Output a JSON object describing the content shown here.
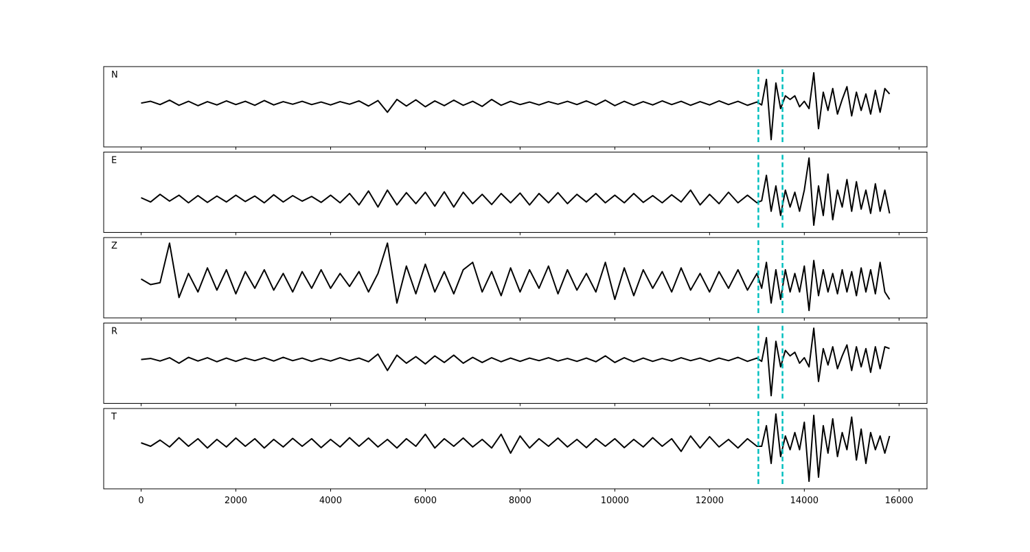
{
  "chart_data": {
    "type": "line",
    "xlim": [
      -790,
      16590
    ],
    "xticks": [
      0,
      2000,
      4000,
      6000,
      8000,
      10000,
      12000,
      14000,
      16000
    ],
    "vlines": [
      13030,
      13540
    ],
    "vline_color": "#00bfbf",
    "color": "#000000",
    "x": [
      0,
      200,
      400,
      600,
      800,
      1000,
      1200,
      1400,
      1600,
      1800,
      2000,
      2200,
      2400,
      2600,
      2800,
      3000,
      3200,
      3400,
      3600,
      3800,
      4000,
      4200,
      4400,
      4600,
      4800,
      5000,
      5200,
      5400,
      5600,
      5800,
      6000,
      6200,
      6400,
      6600,
      6800,
      7000,
      7200,
      7400,
      7600,
      7800,
      8000,
      8200,
      8400,
      8600,
      8800,
      9000,
      9200,
      9400,
      9600,
      9800,
      10000,
      10200,
      10400,
      10600,
      10800,
      11000,
      11200,
      11400,
      11600,
      11800,
      12000,
      12200,
      12400,
      12600,
      12800,
      13000,
      13100,
      13200,
      13300,
      13400,
      13500,
      13600,
      13700,
      13800,
      13900,
      14000,
      14100,
      14200,
      14300,
      14400,
      14500,
      14600,
      14700,
      14800,
      14900,
      15000,
      15100,
      15200,
      15300,
      15400,
      15500,
      15600,
      15700,
      15800
    ],
    "series": [
      {
        "name": "N",
        "ylim": [
          -1.2,
          1.0
        ],
        "values": [
          0,
          0.05,
          -0.04,
          0.08,
          -0.06,
          0.05,
          -0.07,
          0.04,
          -0.05,
          0.06,
          -0.04,
          0.05,
          -0.06,
          0.07,
          -0.05,
          0.04,
          -0.03,
          0.05,
          -0.04,
          0.03,
          -0.05,
          0.04,
          -0.03,
          0.06,
          -0.08,
          0.07,
          -0.25,
          0.1,
          -0.08,
          0.09,
          -0.1,
          0.06,
          -0.07,
          0.08,
          -0.06,
          0.05,
          -0.09,
          0.1,
          -0.06,
          0.05,
          -0.04,
          0.03,
          -0.05,
          0.04,
          -0.03,
          0.05,
          -0.04,
          0.06,
          -0.05,
          0.08,
          -0.07,
          0.05,
          -0.06,
          0.04,
          -0.05,
          0.06,
          -0.04,
          0.05,
          -0.06,
          0.04,
          -0.05,
          0.06,
          -0.04,
          0.05,
          -0.06,
          0.03,
          -0.05,
          0.65,
          -1.0,
          0.55,
          -0.15,
          0.2,
          0.1,
          0.2,
          -0.1,
          0.05,
          -0.15,
          0.83,
          -0.7,
          0.3,
          -0.2,
          0.4,
          -0.3,
          0.1,
          0.45,
          -0.35,
          0.3,
          -0.2,
          0.25,
          -0.3,
          0.35,
          -0.25,
          0.4,
          0.25
        ]
      },
      {
        "name": "E",
        "ylim": [
          -0.8,
          1.1
        ],
        "values": [
          0.02,
          -0.08,
          0.1,
          -0.06,
          0.08,
          -0.1,
          0.07,
          -0.09,
          0.06,
          -0.08,
          0.08,
          -0.07,
          0.06,
          -0.1,
          0.09,
          -0.08,
          0.07,
          -0.06,
          0.05,
          -0.09,
          0.08,
          -0.1,
          0.12,
          -0.15,
          0.18,
          -0.2,
          0.2,
          -0.15,
          0.14,
          -0.12,
          0.15,
          -0.18,
          0.16,
          -0.2,
          0.15,
          -0.12,
          0.1,
          -0.14,
          0.12,
          -0.1,
          0.13,
          -0.15,
          0.12,
          -0.1,
          0.14,
          -0.12,
          0.1,
          -0.08,
          0.12,
          -0.1,
          0.08,
          -0.1,
          0.12,
          -0.09,
          0.07,
          -0.1,
          0.09,
          -0.08,
          0.2,
          -0.15,
          0.1,
          -0.12,
          0.15,
          -0.1,
          0.08,
          -0.1,
          -0.05,
          0.55,
          -0.3,
          0.3,
          -0.4,
          0.2,
          -0.2,
          0.15,
          -0.3,
          0.2,
          0.96,
          -0.63,
          0.3,
          -0.4,
          0.58,
          -0.5,
          0.2,
          -0.2,
          0.45,
          -0.3,
          0.4,
          -0.25,
          0.2,
          -0.35,
          0.35,
          -0.3,
          0.2,
          -0.35
        ]
      },
      {
        "name": "Z",
        "ylim": [
          -1.0,
          1.17
        ],
        "values": [
          0.05,
          -0.1,
          -0.05,
          1.02,
          -0.45,
          0.2,
          -0.3,
          0.35,
          -0.25,
          0.3,
          -0.35,
          0.25,
          -0.2,
          0.3,
          -0.25,
          0.2,
          -0.3,
          0.25,
          -0.2,
          0.3,
          -0.2,
          0.2,
          -0.15,
          0.25,
          -0.3,
          0.2,
          1.02,
          -0.6,
          0.4,
          -0.35,
          0.45,
          -0.3,
          0.25,
          -0.35,
          0.3,
          0.5,
          -0.3,
          0.25,
          -0.4,
          0.35,
          -0.3,
          0.3,
          -0.2,
          0.4,
          -0.35,
          0.3,
          -0.25,
          0.2,
          -0.3,
          0.5,
          -0.5,
          0.35,
          -0.4,
          0.3,
          -0.2,
          0.25,
          -0.3,
          0.35,
          -0.25,
          0.2,
          -0.3,
          0.25,
          -0.2,
          0.3,
          -0.25,
          0.2,
          -0.2,
          0.5,
          -0.6,
          0.3,
          -0.5,
          0.3,
          -0.3,
          0.2,
          -0.3,
          0.4,
          -0.8,
          0.55,
          -0.4,
          0.3,
          -0.3,
          0.2,
          -0.35,
          0.3,
          -0.3,
          0.25,
          -0.4,
          0.35,
          -0.3,
          0.3,
          -0.35,
          0.5,
          -0.3,
          -0.5
        ]
      },
      {
        "name": "R",
        "ylim": [
          -1.2,
          1.0
        ],
        "values": [
          0,
          0.03,
          -0.04,
          0.05,
          -0.1,
          0.06,
          -0.04,
          0.05,
          -0.06,
          0.04,
          -0.05,
          0.04,
          -0.03,
          0.05,
          -0.04,
          0.06,
          -0.03,
          0.04,
          -0.05,
          0.03,
          -0.04,
          0.05,
          -0.03,
          0.04,
          -0.06,
          0.15,
          -0.3,
          0.12,
          -0.1,
          0.08,
          -0.12,
          0.1,
          -0.08,
          0.12,
          -0.1,
          0.06,
          -0.08,
          0.05,
          -0.06,
          0.04,
          -0.05,
          0.04,
          -0.03,
          0.05,
          -0.04,
          0.03,
          -0.05,
          0.04,
          -0.06,
          0.1,
          -0.08,
          0.05,
          -0.06,
          0.04,
          -0.05,
          0.03,
          -0.04,
          0.05,
          -0.03,
          0.04,
          -0.05,
          0.04,
          -0.03,
          0.06,
          -0.05,
          0.04,
          -0.05,
          0.6,
          -0.99,
          0.5,
          -0.2,
          0.25,
          0.1,
          0.2,
          -0.1,
          0.05,
          -0.2,
          0.86,
          -0.6,
          0.3,
          -0.15,
          0.35,
          -0.25,
          0.1,
          0.4,
          -0.3,
          0.35,
          -0.2,
          0.3,
          -0.35,
          0.35,
          -0.25,
          0.35,
          0.3
        ]
      },
      {
        "name": "T",
        "ylim": [
          -1.34,
          1.0
        ],
        "values": [
          0,
          -0.1,
          0.08,
          -0.12,
          0.15,
          -0.1,
          0.12,
          -0.15,
          0.1,
          -0.12,
          0.14,
          -0.1,
          0.12,
          -0.15,
          0.1,
          -0.12,
          0.13,
          -0.1,
          0.12,
          -0.14,
          0.1,
          -0.12,
          0.15,
          -0.1,
          0.14,
          -0.12,
          0.1,
          -0.15,
          0.12,
          -0.1,
          0.25,
          -0.15,
          0.12,
          -0.1,
          0.14,
          -0.12,
          0.1,
          -0.15,
          0.25,
          -0.3,
          0.2,
          -0.15,
          0.12,
          -0.1,
          0.14,
          -0.12,
          0.1,
          -0.14,
          0.12,
          -0.1,
          0.12,
          -0.14,
          0.1,
          -0.12,
          0.15,
          -0.1,
          0.12,
          -0.25,
          0.2,
          -0.15,
          0.18,
          -0.12,
          0.1,
          -0.15,
          0.12,
          -0.1,
          -0.1,
          0.5,
          -0.6,
          0.84,
          -0.4,
          0.2,
          -0.2,
          0.3,
          -0.2,
          0.6,
          -1.12,
          0.8,
          -1.0,
          0.5,
          -0.3,
          0.7,
          -0.4,
          0.3,
          -0.2,
          0.75,
          -0.5,
          0.4,
          -0.6,
          0.3,
          -0.2,
          0.2,
          -0.3,
          0.2
        ]
      }
    ]
  }
}
